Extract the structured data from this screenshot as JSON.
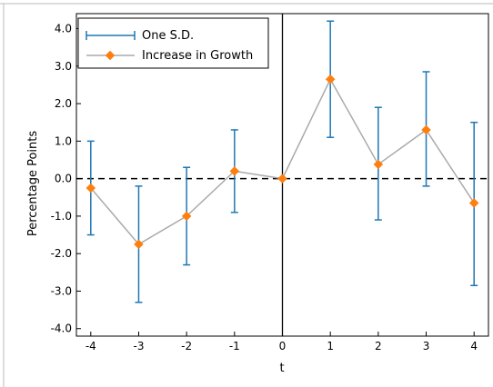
{
  "chart_data": {
    "type": "line",
    "xlabel": "t",
    "ylabel": "Percentage Points",
    "x": [
      -4,
      -3,
      -2,
      -1,
      0,
      1,
      2,
      3,
      4
    ],
    "xlim": [
      -4.3,
      4.3
    ],
    "ylim": [
      -4.2,
      4.4
    ],
    "x_ticks": [
      -4,
      -3,
      -2,
      -1,
      0,
      1,
      2,
      3,
      4
    ],
    "x_tick_labels": [
      "-4",
      "-3",
      "-2",
      "-1",
      "0",
      "1",
      "2",
      "3",
      "4"
    ],
    "y_ticks": [
      4.0,
      3.0,
      2.0,
      1.0,
      0.0,
      -1.0,
      -2.0,
      -3.0,
      -4.0
    ],
    "y_tick_labels": [
      "4.0",
      "3.0",
      "2.0",
      "1.0",
      "0.0",
      "-1.0",
      "-2.0",
      "-3.0",
      "-4.0"
    ],
    "grid": false,
    "legend_position": "top-left",
    "reference_lines": {
      "horizontal_dashed_y": 0,
      "vertical_solid_x": 0
    },
    "series": [
      {
        "name": "One S.D.",
        "kind": "errorbar",
        "color": "#1f77b4",
        "lower": [
          -1.5,
          -3.3,
          -2.3,
          -0.9,
          0.0,
          1.1,
          -1.1,
          -0.2,
          -2.85
        ],
        "upper": [
          1.0,
          -0.2,
          0.3,
          1.3,
          0.0,
          4.2,
          1.9,
          2.85,
          1.5
        ]
      },
      {
        "name": "Increase in Growth",
        "kind": "line-marker",
        "color": "#ff7f0e",
        "line_color": "#aaaaaa",
        "values": [
          -0.25,
          -1.75,
          -1.0,
          0.2,
          0.0,
          2.65,
          0.38,
          1.3,
          -0.65
        ]
      }
    ]
  }
}
